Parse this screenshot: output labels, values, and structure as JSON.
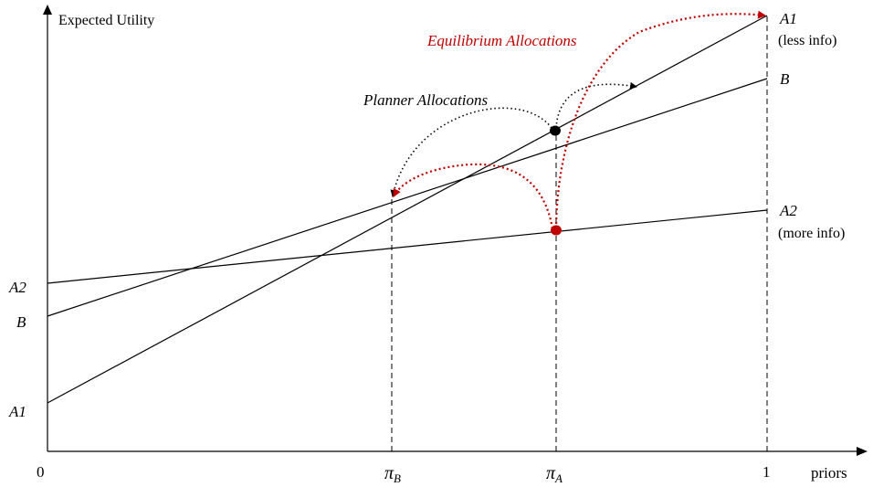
{
  "axes": {
    "y_label": "Expected Utility",
    "x_label": "priors",
    "origin_label": "0",
    "one_label": "1"
  },
  "x_markers": {
    "pi_b": {
      "symbol": "π",
      "sub": "B"
    },
    "pi_a": {
      "symbol": "π",
      "sub": "A"
    }
  },
  "lines": {
    "a1": {
      "name": "A1",
      "note": "(less info)"
    },
    "b": {
      "name": "B"
    },
    "a2": {
      "name": "A2",
      "note": "(more info)"
    }
  },
  "left_intercepts": {
    "a2": "A2",
    "b": "B",
    "a1": "A1"
  },
  "annotations": {
    "planner": "Planner Allocations",
    "equilibrium": "Equilibrium Allocations"
  },
  "colors": {
    "ink": "#000000",
    "equilibrium": "#c00000"
  }
}
